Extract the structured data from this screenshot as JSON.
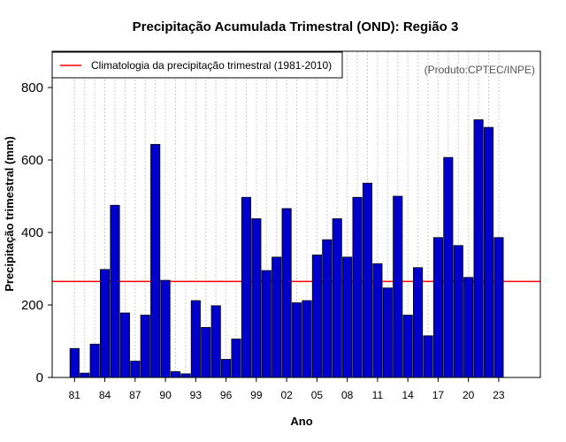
{
  "chart_data": {
    "type": "bar",
    "title": "Precipitação Acumulada Trimestral (OND): Região 3",
    "xlabel": "Ano",
    "ylabel": "Precipitação trimestral (mm)",
    "credit": "(Produto:CPTEC/INPE)",
    "ylim": [
      0,
      900
    ],
    "yticks": [
      0,
      200,
      400,
      600,
      800
    ],
    "xtick_labels": [
      "81",
      "84",
      "87",
      "90",
      "93",
      "96",
      "99",
      "02",
      "05",
      "08",
      "11",
      "14",
      "17",
      "20",
      "23"
    ],
    "categories": [
      "1981",
      "1982",
      "1983",
      "1984",
      "1985",
      "1986",
      "1987",
      "1988",
      "1989",
      "1990",
      "1991",
      "1992",
      "1993",
      "1994",
      "1995",
      "1996",
      "1997",
      "1998",
      "1999",
      "2000",
      "2001",
      "2002",
      "2003",
      "2004",
      "2005",
      "2006",
      "2007",
      "2008",
      "2009",
      "2010",
      "2011",
      "2012",
      "2013",
      "2014",
      "2015",
      "2016",
      "2017",
      "2018",
      "2019",
      "2020",
      "2021",
      "2022",
      "2023"
    ],
    "values": [
      80,
      12,
      92,
      298,
      475,
      178,
      45,
      172,
      643,
      268,
      16,
      10,
      212,
      138,
      198,
      50,
      106,
      497,
      438,
      295,
      332,
      466,
      206,
      212,
      338,
      380,
      438,
      332,
      497,
      536,
      314,
      247,
      500,
      172,
      303,
      115,
      386,
      607,
      364,
      276,
      711,
      690,
      386
    ],
    "bar_color": "#0000cc",
    "climatology": {
      "label": "Climatologia da precipitação trimestral (1981-2010)",
      "value": 265,
      "color": "#ff0000"
    },
    "legend_position": "top-left",
    "grid": "vertical-dotted"
  }
}
